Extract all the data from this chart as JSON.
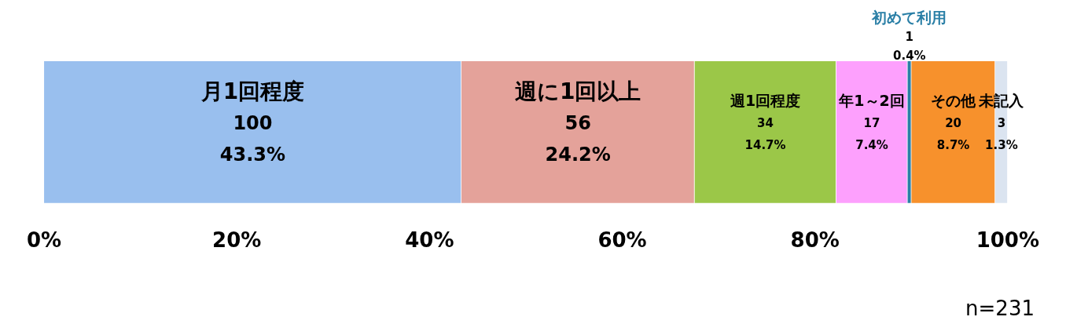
{
  "chart_data": {
    "type": "bar",
    "orientation": "horizontal",
    "stacked": true,
    "categories": [
      null
    ],
    "series": [
      {
        "name": "月1回程度",
        "color": "#99bfee",
        "values": [
          43.3
        ],
        "value_labels": [
          "100\n43.3%"
        ]
      },
      {
        "name": "週に1回以上",
        "color": "#e4a29a",
        "values": [
          24.2
        ],
        "value_labels": [
          "56\n24.2%"
        ]
      },
      {
        "name": "週1回程度",
        "color": "#9bc748",
        "values": [
          14.7
        ],
        "value_labels": [
          "34\n14.7%"
        ]
      },
      {
        "name": "年1～2回",
        "color": "#fda0fd",
        "values": [
          7.4
        ],
        "value_labels": [
          "17\n7.4%"
        ]
      },
      {
        "name": "初めて利用",
        "color": "#2a7fa6",
        "values": [
          0.4
        ],
        "value_labels": [
          "1\n0.4%"
        ]
      },
      {
        "name": "その他",
        "color": "#f7912c",
        "values": [
          8.7
        ],
        "value_labels": [
          "20\n8.7%"
        ]
      },
      {
        "name": "未記入",
        "color": "#dbe4f0",
        "values": [
          1.3
        ],
        "value_labels": [
          "3\n1.3%"
        ]
      }
    ],
    "xlim": [
      0,
      100
    ],
    "xticks": [
      {
        "value": 0,
        "label": "0%"
      },
      {
        "value": 20,
        "label": "20%"
      },
      {
        "value": 40,
        "label": "40%"
      },
      {
        "value": 60,
        "label": "60%"
      },
      {
        "value": 80,
        "label": "80%"
      },
      {
        "value": 100,
        "label": "100%"
      }
    ],
    "grid": false,
    "legend": false,
    "annotations": [
      "n=231"
    ]
  }
}
